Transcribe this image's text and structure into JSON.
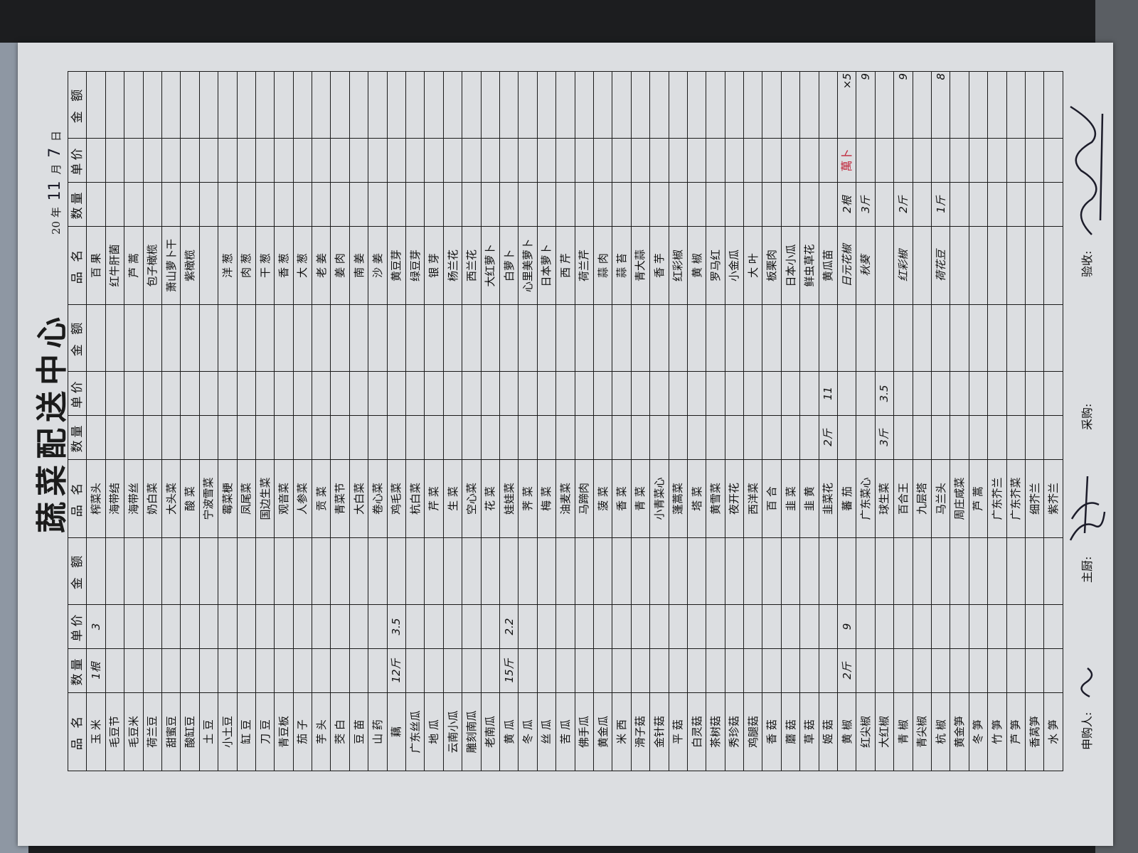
{
  "title": "蔬菜配送中心",
  "date": {
    "prefix": "20",
    "year_label": "年",
    "month": "11",
    "month_label": "月",
    "day": "7",
    "day_label": "日"
  },
  "colors": {
    "ink": "#111111",
    "handwriting_red": "#c0263a",
    "paper": "#dcdee1"
  },
  "table": {
    "headers": [
      "品 名",
      "数量",
      "单价",
      "金 额"
    ],
    "groups": [
      {
        "rows": [
          {
            "name": "玉 米",
            "qty": "1根",
            "price": "3"
          },
          {
            "name": "毛豆节"
          },
          {
            "name": "毛豆米"
          },
          {
            "name": "荷兰豆"
          },
          {
            "name": "甜蜜豆"
          },
          {
            "name": "酸缸豆"
          },
          {
            "name": "土 豆"
          },
          {
            "name": "小土豆"
          },
          {
            "name": "缸 豆"
          },
          {
            "name": "刀 豆"
          },
          {
            "name": "青豆板"
          },
          {
            "name": "茄 子"
          },
          {
            "name": "芋 头"
          },
          {
            "name": "茭 白"
          },
          {
            "name": "豆 苗"
          },
          {
            "name": "山 药"
          },
          {
            "name": "藕",
            "qty": "12斤",
            "price": "3.5"
          },
          {
            "name": "广东丝瓜"
          },
          {
            "name": "地 瓜"
          },
          {
            "name": "云南小瓜"
          },
          {
            "name": "雕刻南瓜"
          },
          {
            "name": "老南瓜"
          },
          {
            "name": "黄 瓜",
            "qty": "15斤",
            "price": "2.2"
          },
          {
            "name": "冬 瓜"
          },
          {
            "name": "丝 瓜"
          },
          {
            "name": "苦 瓜"
          },
          {
            "name": "佛手瓜"
          },
          {
            "name": "黄金瓜"
          },
          {
            "name": "米 西"
          },
          {
            "name": "滑子菇"
          },
          {
            "name": "金针菇"
          },
          {
            "name": "平 菇"
          },
          {
            "name": "白灵菇"
          },
          {
            "name": "茶树菇"
          },
          {
            "name": "秀珍菇"
          },
          {
            "name": "鸡腿菇"
          },
          {
            "name": "香 菇"
          },
          {
            "name": "蘑 菇"
          },
          {
            "name": "草 菇"
          },
          {
            "name": "姬 菇"
          },
          {
            "name": "黄 椒",
            "qty": "2斤",
            "price": "9"
          },
          {
            "name": "红尖椒"
          },
          {
            "name": "大红椒"
          },
          {
            "name": "青 椒"
          },
          {
            "name": "青尖椒"
          },
          {
            "name": "杭 椒"
          },
          {
            "name": "黄金笋"
          },
          {
            "name": "冬 笋"
          },
          {
            "name": "竹 笋"
          },
          {
            "name": "芦 笋"
          },
          {
            "name": "香莴笋"
          },
          {
            "name": "水 笋"
          }
        ]
      },
      {
        "rows": [
          {
            "name": "榨菜头"
          },
          {
            "name": "海带结"
          },
          {
            "name": "海带丝"
          },
          {
            "name": "奶白菜"
          },
          {
            "name": "大头菜"
          },
          {
            "name": "酸 菜"
          },
          {
            "name": "宁波雪菜"
          },
          {
            "name": "霉菜梗"
          },
          {
            "name": "凤尾菜"
          },
          {
            "name": "国边生菜"
          },
          {
            "name": "观音菜"
          },
          {
            "name": "人参菜"
          },
          {
            "name": "贡 菜"
          },
          {
            "name": "青菜节"
          },
          {
            "name": "大白菜"
          },
          {
            "name": "卷心菜"
          },
          {
            "name": "鸡毛菜"
          },
          {
            "name": "杭白菜"
          },
          {
            "name": "芹 菜"
          },
          {
            "name": "生 菜"
          },
          {
            "name": "空心菜"
          },
          {
            "name": "花 菜"
          },
          {
            "name": "娃娃菜"
          },
          {
            "name": "荠 菜"
          },
          {
            "name": "梅 菜"
          },
          {
            "name": "油麦菜"
          },
          {
            "name": "马蹄肉"
          },
          {
            "name": "菠 菜"
          },
          {
            "name": "香 菜"
          },
          {
            "name": "青 菜"
          },
          {
            "name": "小青菜心"
          },
          {
            "name": "蓬蒿菜"
          },
          {
            "name": "塔 菜"
          },
          {
            "name": "黄雪菜"
          },
          {
            "name": "夜开花"
          },
          {
            "name": "西洋菜"
          },
          {
            "name": "百 合"
          },
          {
            "name": "韭 菜"
          },
          {
            "name": "韭 黄"
          },
          {
            "name": "韭菜花",
            "qty": "2斤",
            "price": "11"
          },
          {
            "name": "蕃 茄"
          },
          {
            "name": "广东菜心"
          },
          {
            "name": "球生菜",
            "qty": "3斤",
            "price": "3.5"
          },
          {
            "name": "百合王"
          },
          {
            "name": "九层塔"
          },
          {
            "name": "马兰头"
          },
          {
            "name": "周庄咸菜"
          },
          {
            "name": "芦 蒿"
          },
          {
            "name": "广东芥兰"
          },
          {
            "name": "广东芥菜"
          },
          {
            "name": "细芥兰"
          },
          {
            "name": "紫芥兰"
          }
        ]
      },
      {
        "rows": [
          {
            "name": "百 果"
          },
          {
            "name": "红牛肝菌"
          },
          {
            "name": "芦 蒿"
          },
          {
            "name": "包子橄榄"
          },
          {
            "name": "萧山萝卜干"
          },
          {
            "name": "紫橄榄"
          },
          {
            "name": ""
          },
          {
            "name": "洋 葱"
          },
          {
            "name": "肉 葱"
          },
          {
            "name": "干 葱"
          },
          {
            "name": "香 葱"
          },
          {
            "name": "大 葱"
          },
          {
            "name": "老 姜"
          },
          {
            "name": "姜 肉"
          },
          {
            "name": "南 姜"
          },
          {
            "name": "沙 姜"
          },
          {
            "name": "黄豆芽"
          },
          {
            "name": "绿豆芽"
          },
          {
            "name": "银 芽"
          },
          {
            "name": "杨兰花"
          },
          {
            "name": "西兰花"
          },
          {
            "name": "大红萝卜"
          },
          {
            "name": "白萝卜"
          },
          {
            "name": "心里美萝卜"
          },
          {
            "name": "日本萝卜"
          },
          {
            "name": "西 芹"
          },
          {
            "name": "荷兰芹"
          },
          {
            "name": "蒜 肉"
          },
          {
            "name": "蒜 苔"
          },
          {
            "name": "青大蒜"
          },
          {
            "name": "香 芋"
          },
          {
            "name": "红彩椒"
          },
          {
            "name": "黄 椒"
          },
          {
            "name": "罗马红"
          },
          {
            "name": "小金瓜"
          },
          {
            "name": "大 叶"
          },
          {
            "name": "板栗肉"
          },
          {
            "name": "日本小瓜"
          },
          {
            "name": "鲜虫草花"
          },
          {
            "name": "黄瓜苗"
          },
          {
            "hw": "日元花椒",
            "qty": "2根",
            "amount": "×5"
          },
          {
            "hw": "秋葵",
            "qty": "3斤",
            "amount": "9"
          },
          {},
          {
            "hw": "红彩椒",
            "qty": "2斤",
            "amount": "9"
          },
          {},
          {
            "hw": "荷花豆",
            "qty": "1斤",
            "amount": "8"
          },
          {},
          {},
          {},
          {},
          {},
          {}
        ]
      }
    ]
  },
  "annotation_red": "萬卜",
  "footer": {
    "requester": "申购人:",
    "chef": "主厨:",
    "purchaser": "采购:",
    "inspector": "验收:"
  }
}
